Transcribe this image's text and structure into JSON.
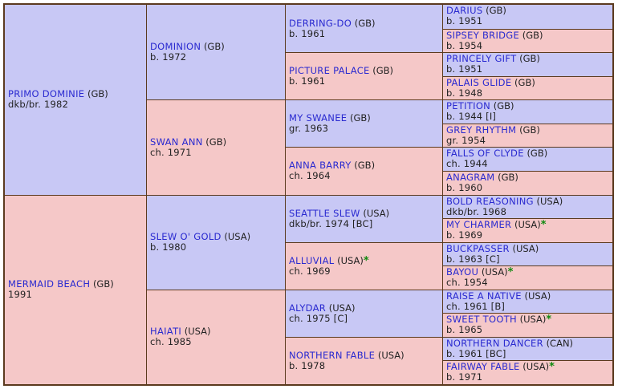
{
  "pedigree": [
    {
      "name": "PRIMO DOMINIE",
      "country": "(GB)",
      "info": "dkb/br. 1982",
      "star": false
    },
    {
      "name": "MERMAID BEACH",
      "country": "(GB)",
      "info": "1991",
      "star": false
    },
    {
      "name": "DOMINION",
      "country": "(GB)",
      "info": "b. 1972",
      "star": false
    },
    {
      "name": "SWAN ANN",
      "country": "(GB)",
      "info": "ch. 1971",
      "star": false
    },
    {
      "name": "SLEW O' GOLD",
      "country": "(USA)",
      "info": "b. 1980",
      "star": false
    },
    {
      "name": "HAIATI",
      "country": "(USA)",
      "info": "ch. 1985",
      "star": false
    },
    {
      "name": "DERRING-DO",
      "country": "(GB)",
      "info": "b. 1961",
      "star": false
    },
    {
      "name": "PICTURE PALACE",
      "country": "(GB)",
      "info": "b. 1961",
      "star": false
    },
    {
      "name": "MY SWANEE",
      "country": "(GB)",
      "info": "gr. 1963",
      "star": false
    },
    {
      "name": "ANNA BARRY",
      "country": "(GB)",
      "info": "ch. 1964",
      "star": false
    },
    {
      "name": "SEATTLE SLEW",
      "country": "(USA)",
      "info": "dkb/br. 1974 [BC]",
      "star": false
    },
    {
      "name": "ALLUVIAL",
      "country": "(USA)",
      "info": "ch. 1969",
      "star": true
    },
    {
      "name": "ALYDAR",
      "country": "(USA)",
      "info": "ch. 1975 [C]",
      "star": false
    },
    {
      "name": "NORTHERN FABLE",
      "country": "(USA)",
      "info": "b. 1978",
      "star": false
    },
    {
      "name": "DARIUS",
      "country": "(GB)",
      "info": "b. 1951",
      "star": false
    },
    {
      "name": "SIPSEY BRIDGE",
      "country": "(GB)",
      "info": "b. 1954",
      "star": false
    },
    {
      "name": "PRINCELY GIFT",
      "country": "(GB)",
      "info": "b. 1951",
      "star": false
    },
    {
      "name": "PALAIS GLIDE",
      "country": "(GB)",
      "info": "b. 1948",
      "star": false
    },
    {
      "name": "PETITION",
      "country": "(GB)",
      "info": "b. 1944 [I]",
      "star": false
    },
    {
      "name": "GREY RHYTHM",
      "country": "(GB)",
      "info": "gr. 1954",
      "star": false
    },
    {
      "name": "FALLS OF CLYDE",
      "country": "(GB)",
      "info": "ch. 1944",
      "star": false
    },
    {
      "name": "ANAGRAM",
      "country": "(GB)",
      "info": "b. 1960",
      "star": false
    },
    {
      "name": "BOLD REASONING",
      "country": "(USA)",
      "info": "dkb/br. 1968",
      "star": false
    },
    {
      "name": "MY CHARMER",
      "country": "(USA)",
      "info": "b. 1969",
      "star": true
    },
    {
      "name": "BUCKPASSER",
      "country": "(USA)",
      "info": "b. 1963 [C]",
      "star": false
    },
    {
      "name": "BAYOU",
      "country": "(USA)",
      "info": "ch. 1954",
      "star": true
    },
    {
      "name": "RAISE A NATIVE",
      "country": "(USA)",
      "info": "ch. 1961 [B]",
      "star": false
    },
    {
      "name": "SWEET TOOTH",
      "country": "(USA)",
      "info": "b. 1965",
      "star": true
    },
    {
      "name": "NORTHERN DANCER",
      "country": "(CAN)",
      "info": "b. 1961 [BC]",
      "star": false
    },
    {
      "name": "FAIRWAY FABLE",
      "country": "(USA)",
      "info": "b. 1971",
      "star": true
    }
  ],
  "colors": {
    "sire": "#c8c8f5",
    "dam": "#f5c8c8",
    "border": "#5b3a1e",
    "name": "#2a2ad0",
    "star": "#0f8a0f"
  },
  "star_symbol": "*"
}
